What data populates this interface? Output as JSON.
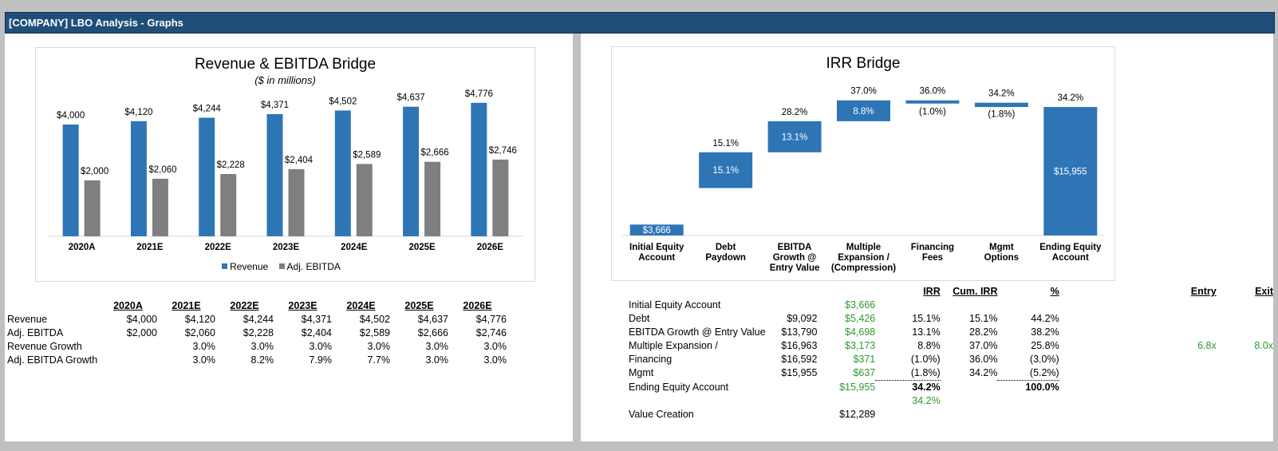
{
  "header": {
    "title": "[COMPANY] LBO Analysis - Graphs"
  },
  "colors": {
    "revenue": "#2e75b6",
    "ebitda": "#7f7f7f",
    "irr_bar": "#2e75b6",
    "green": "#2e9a2e",
    "header_bg": "#1f4e79"
  },
  "revenue_chart": {
    "title": "Revenue & EBITDA Bridge",
    "subtitle": "($ in millions)",
    "legend": [
      "Revenue",
      "Adj. EBITDA"
    ],
    "chart_data": {
      "type": "bar",
      "categories": [
        "2020A",
        "2021E",
        "2022E",
        "2023E",
        "2024E",
        "2025E",
        "2026E"
      ],
      "series": [
        {
          "name": "Revenue",
          "values": [
            4000,
            4120,
            4244,
            4371,
            4502,
            4637,
            4776
          ],
          "labels": [
            "$4,000",
            "$4,120",
            "$4,244",
            "$4,371",
            "$4,502",
            "$4,637",
            "$4,776"
          ]
        },
        {
          "name": "Adj. EBITDA",
          "values": [
            2000,
            2060,
            2228,
            2404,
            2589,
            2666,
            2746
          ],
          "labels": [
            "$2,000",
            "$2,060",
            "$2,228",
            "$2,404",
            "$2,589",
            "$2,666",
            "$2,746"
          ]
        }
      ],
      "ylim": [
        0,
        5600
      ]
    }
  },
  "irr_chart": {
    "title": "IRR Bridge",
    "chart_data": {
      "type": "bar",
      "categories": [
        "Initial Equity Account",
        "Debt Paydown",
        "EBITDA Growth @ Entry Value",
        "Multiple Expansion / (Compression)",
        "Financing Fees",
        "Mgmt Options",
        "Ending Equity Account"
      ],
      "category_lines": [
        [
          "Initial Equity",
          "Account"
        ],
        [
          "Debt",
          "Paydown"
        ],
        [
          "EBITDA",
          "Growth @",
          "Entry Value"
        ],
        [
          "Multiple",
          "Expansion /",
          "(Compression)"
        ],
        [
          "Financing",
          "Fees"
        ],
        [
          "Mgmt",
          "Options"
        ],
        [
          "Ending Equity",
          "Account"
        ]
      ],
      "steps": [
        {
          "start": 0,
          "end": 4.6,
          "inside": "$3,666",
          "top": ""
        },
        {
          "start": 20.0,
          "end": 35.1,
          "inside": "15.1%",
          "top": "15.1%"
        },
        {
          "start": 35.1,
          "end": 48.2,
          "inside": "13.1%",
          "top": "28.2%"
        },
        {
          "start": 48.2,
          "end": 57.0,
          "inside": "8.8%",
          "top": "37.0%"
        },
        {
          "start": 57.0,
          "end": 56.0,
          "inside": "",
          "top": "36.0%",
          "below": "(1.0%)"
        },
        {
          "start": 56.0,
          "end": 54.2,
          "inside": "",
          "top": "34.2%",
          "below": "(1.8%)"
        },
        {
          "start": 0,
          "end": 54.2,
          "inside": "$15,955",
          "top": "34.2%"
        }
      ],
      "ylim": [
        0,
        66
      ]
    }
  },
  "left_table": {
    "headers": [
      "2020A",
      "2021E",
      "2022E",
      "2023E",
      "2024E",
      "2025E",
      "2026E"
    ],
    "rows": [
      {
        "label": "Revenue",
        "values": [
          "$4,000",
          "$4,120",
          "$4,244",
          "$4,371",
          "$4,502",
          "$4,637",
          "$4,776"
        ]
      },
      {
        "label": "Adj. EBITDA",
        "values": [
          "$2,000",
          "$2,060",
          "$2,228",
          "$2,404",
          "$2,589",
          "$2,666",
          "$2,746"
        ]
      },
      {
        "label": "Revenue Growth",
        "values": [
          "",
          "3.0%",
          "3.0%",
          "3.0%",
          "3.0%",
          "3.0%",
          "3.0%"
        ]
      },
      {
        "label": "Adj. EBITDA Growth",
        "values": [
          "",
          "3.0%",
          "8.2%",
          "7.9%",
          "7.7%",
          "3.0%",
          "3.0%"
        ]
      }
    ]
  },
  "right_table": {
    "headers": {
      "irr": "IRR",
      "cum_irr": "Cum. IRR",
      "pct": "%",
      "entry": "Entry",
      "exit": "Exit"
    },
    "rows": [
      {
        "label": "Initial Equity Account",
        "v1": "",
        "v2": "$3,666",
        "irr": "",
        "cum": "",
        "pct": "",
        "entry": "",
        "exit": ""
      },
      {
        "label": "Debt",
        "v1": "$9,092",
        "v2": "$5,426",
        "irr": "15.1%",
        "cum": "15.1%",
        "pct": "44.2%",
        "entry": "",
        "exit": ""
      },
      {
        "label": "EBITDA Growth @ Entry Value",
        "v1": "$13,790",
        "v2": "$4,698",
        "irr": "13.1%",
        "cum": "28.2%",
        "pct": "38.2%",
        "entry": "",
        "exit": ""
      },
      {
        "label": "Multiple Expansion /",
        "v1": "$16,963",
        "v2": "$3,173",
        "irr": "8.8%",
        "cum": "37.0%",
        "pct": "25.8%",
        "entry": "6.8x",
        "exit": "8.0x"
      },
      {
        "label": "Financing",
        "v1": "$16,592",
        "v2": "$371",
        "irr": "(1.0%)",
        "cum": "36.0%",
        "pct": "(3.0%)",
        "entry": "",
        "exit": ""
      },
      {
        "label": "Mgmt",
        "v1": "$15,955",
        "v2": "$637",
        "irr": "(1.8%)",
        "cum": "34.2%",
        "pct": "(5.2%)",
        "entry": "",
        "exit": ""
      },
      {
        "label": "Ending Equity Account",
        "v1": "",
        "v2": "$15,955",
        "irr": "34.2%",
        "cum": "",
        "pct": "100.0%",
        "entry": "",
        "exit": ""
      }
    ],
    "check_value": "34.2%",
    "value_creation": {
      "label": "Value Creation",
      "value": "$12,289"
    }
  }
}
